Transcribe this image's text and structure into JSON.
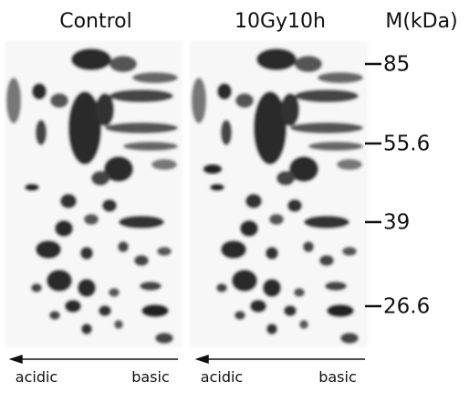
{
  "panels": [
    {
      "title": "Control",
      "axis": {
        "left": "acidic",
        "right": "basic"
      }
    },
    {
      "title": "10Gy10h",
      "axis": {
        "left": "acidic",
        "right": "basic"
      }
    }
  ],
  "marker": {
    "title": "M(kDa)",
    "bands": [
      "85",
      "55.6",
      "39",
      "26.6"
    ]
  }
}
